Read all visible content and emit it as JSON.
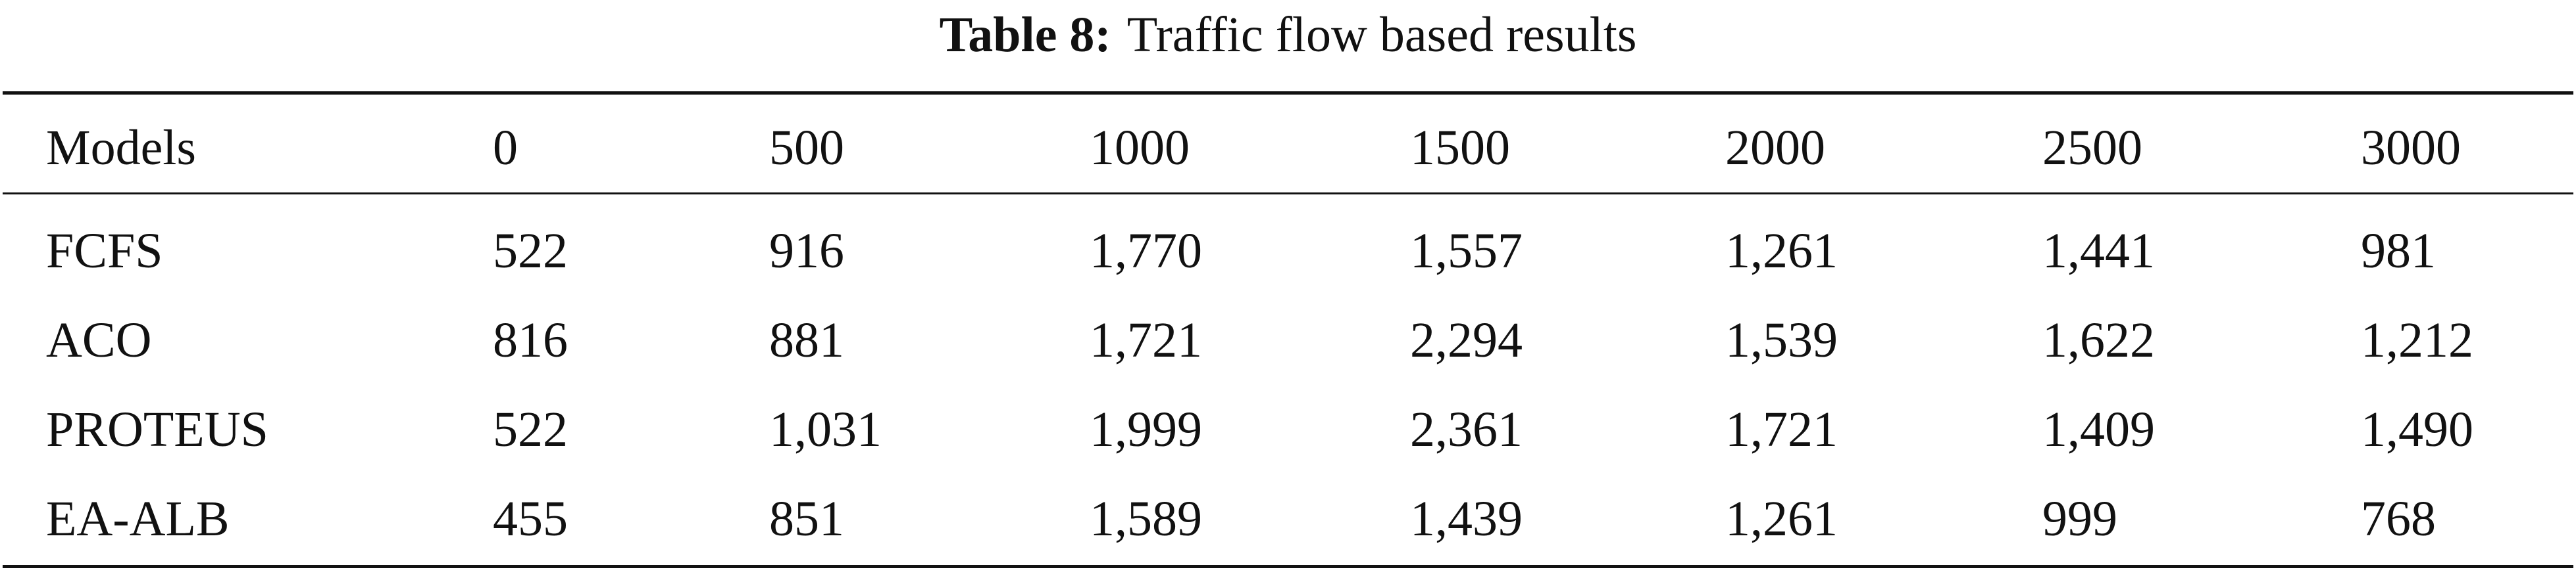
{
  "caption": {
    "label": "Table 8:",
    "text": "Traffic flow based results"
  },
  "table": {
    "header": [
      "Models",
      "0",
      "500",
      "1000",
      "1500",
      "2000",
      "2500",
      "3000"
    ],
    "rows": [
      [
        "FCFS",
        "522",
        "916",
        "1,770",
        "1,557",
        "1,261",
        "1,441",
        "981"
      ],
      [
        "ACO",
        "816",
        "881",
        "1,721",
        "2,294",
        "1,539",
        "1,622",
        "1,212"
      ],
      [
        "PROTEUS",
        "522",
        "1,031",
        "1,999",
        "2,361",
        "1,721",
        "1,409",
        "1,490"
      ],
      [
        "EA-ALB",
        "455",
        "851",
        "1,589",
        "1,439",
        "1,261",
        "999",
        "768"
      ]
    ]
  }
}
